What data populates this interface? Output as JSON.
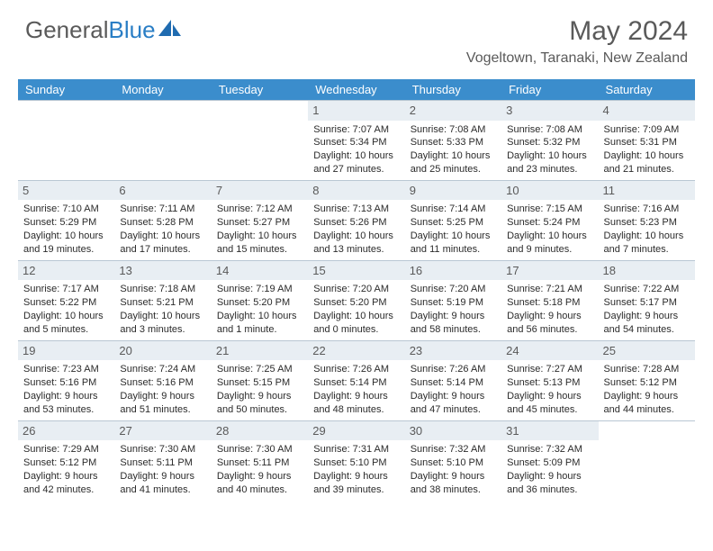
{
  "logo": {
    "text1": "General",
    "text2": "Blue"
  },
  "title": "May 2024",
  "location": "Vogeltown, Taranaki, New Zealand",
  "colors": {
    "header_bg": "#3b8dcc",
    "header_text": "#ffffff",
    "daynum_bg": "#e8eef3",
    "border": "#b9c7d3",
    "text": "#2b2b2b",
    "muted": "#5a5a5a",
    "logo_blue": "#2a7ec5"
  },
  "day_headers": [
    "Sunday",
    "Monday",
    "Tuesday",
    "Wednesday",
    "Thursday",
    "Friday",
    "Saturday"
  ],
  "weeks": [
    [
      {
        "empty": true
      },
      {
        "empty": true
      },
      {
        "empty": true
      },
      {
        "num": "1",
        "sunrise": "7:07 AM",
        "sunset": "5:34 PM",
        "daylight1": "Daylight: 10 hours",
        "daylight2": "and 27 minutes."
      },
      {
        "num": "2",
        "sunrise": "7:08 AM",
        "sunset": "5:33 PM",
        "daylight1": "Daylight: 10 hours",
        "daylight2": "and 25 minutes."
      },
      {
        "num": "3",
        "sunrise": "7:08 AM",
        "sunset": "5:32 PM",
        "daylight1": "Daylight: 10 hours",
        "daylight2": "and 23 minutes."
      },
      {
        "num": "4",
        "sunrise": "7:09 AM",
        "sunset": "5:31 PM",
        "daylight1": "Daylight: 10 hours",
        "daylight2": "and 21 minutes."
      }
    ],
    [
      {
        "num": "5",
        "sunrise": "7:10 AM",
        "sunset": "5:29 PM",
        "daylight1": "Daylight: 10 hours",
        "daylight2": "and 19 minutes."
      },
      {
        "num": "6",
        "sunrise": "7:11 AM",
        "sunset": "5:28 PM",
        "daylight1": "Daylight: 10 hours",
        "daylight2": "and 17 minutes."
      },
      {
        "num": "7",
        "sunrise": "7:12 AM",
        "sunset": "5:27 PM",
        "daylight1": "Daylight: 10 hours",
        "daylight2": "and 15 minutes."
      },
      {
        "num": "8",
        "sunrise": "7:13 AM",
        "sunset": "5:26 PM",
        "daylight1": "Daylight: 10 hours",
        "daylight2": "and 13 minutes."
      },
      {
        "num": "9",
        "sunrise": "7:14 AM",
        "sunset": "5:25 PM",
        "daylight1": "Daylight: 10 hours",
        "daylight2": "and 11 minutes."
      },
      {
        "num": "10",
        "sunrise": "7:15 AM",
        "sunset": "5:24 PM",
        "daylight1": "Daylight: 10 hours",
        "daylight2": "and 9 minutes."
      },
      {
        "num": "11",
        "sunrise": "7:16 AM",
        "sunset": "5:23 PM",
        "daylight1": "Daylight: 10 hours",
        "daylight2": "and 7 minutes."
      }
    ],
    [
      {
        "num": "12",
        "sunrise": "7:17 AM",
        "sunset": "5:22 PM",
        "daylight1": "Daylight: 10 hours",
        "daylight2": "and 5 minutes."
      },
      {
        "num": "13",
        "sunrise": "7:18 AM",
        "sunset": "5:21 PM",
        "daylight1": "Daylight: 10 hours",
        "daylight2": "and 3 minutes."
      },
      {
        "num": "14",
        "sunrise": "7:19 AM",
        "sunset": "5:20 PM",
        "daylight1": "Daylight: 10 hours",
        "daylight2": "and 1 minute."
      },
      {
        "num": "15",
        "sunrise": "7:20 AM",
        "sunset": "5:20 PM",
        "daylight1": "Daylight: 10 hours",
        "daylight2": "and 0 minutes."
      },
      {
        "num": "16",
        "sunrise": "7:20 AM",
        "sunset": "5:19 PM",
        "daylight1": "Daylight: 9 hours",
        "daylight2": "and 58 minutes."
      },
      {
        "num": "17",
        "sunrise": "7:21 AM",
        "sunset": "5:18 PM",
        "daylight1": "Daylight: 9 hours",
        "daylight2": "and 56 minutes."
      },
      {
        "num": "18",
        "sunrise": "7:22 AM",
        "sunset": "5:17 PM",
        "daylight1": "Daylight: 9 hours",
        "daylight2": "and 54 minutes."
      }
    ],
    [
      {
        "num": "19",
        "sunrise": "7:23 AM",
        "sunset": "5:16 PM",
        "daylight1": "Daylight: 9 hours",
        "daylight2": "and 53 minutes."
      },
      {
        "num": "20",
        "sunrise": "7:24 AM",
        "sunset": "5:16 PM",
        "daylight1": "Daylight: 9 hours",
        "daylight2": "and 51 minutes."
      },
      {
        "num": "21",
        "sunrise": "7:25 AM",
        "sunset": "5:15 PM",
        "daylight1": "Daylight: 9 hours",
        "daylight2": "and 50 minutes."
      },
      {
        "num": "22",
        "sunrise": "7:26 AM",
        "sunset": "5:14 PM",
        "daylight1": "Daylight: 9 hours",
        "daylight2": "and 48 minutes."
      },
      {
        "num": "23",
        "sunrise": "7:26 AM",
        "sunset": "5:14 PM",
        "daylight1": "Daylight: 9 hours",
        "daylight2": "and 47 minutes."
      },
      {
        "num": "24",
        "sunrise": "7:27 AM",
        "sunset": "5:13 PM",
        "daylight1": "Daylight: 9 hours",
        "daylight2": "and 45 minutes."
      },
      {
        "num": "25",
        "sunrise": "7:28 AM",
        "sunset": "5:12 PM",
        "daylight1": "Daylight: 9 hours",
        "daylight2": "and 44 minutes."
      }
    ],
    [
      {
        "num": "26",
        "sunrise": "7:29 AM",
        "sunset": "5:12 PM",
        "daylight1": "Daylight: 9 hours",
        "daylight2": "and 42 minutes."
      },
      {
        "num": "27",
        "sunrise": "7:30 AM",
        "sunset": "5:11 PM",
        "daylight1": "Daylight: 9 hours",
        "daylight2": "and 41 minutes."
      },
      {
        "num": "28",
        "sunrise": "7:30 AM",
        "sunset": "5:11 PM",
        "daylight1": "Daylight: 9 hours",
        "daylight2": "and 40 minutes."
      },
      {
        "num": "29",
        "sunrise": "7:31 AM",
        "sunset": "5:10 PM",
        "daylight1": "Daylight: 9 hours",
        "daylight2": "and 39 minutes."
      },
      {
        "num": "30",
        "sunrise": "7:32 AM",
        "sunset": "5:10 PM",
        "daylight1": "Daylight: 9 hours",
        "daylight2": "and 38 minutes."
      },
      {
        "num": "31",
        "sunrise": "7:32 AM",
        "sunset": "5:09 PM",
        "daylight1": "Daylight: 9 hours",
        "daylight2": "and 36 minutes."
      },
      {
        "empty": true
      }
    ]
  ],
  "labels": {
    "sunrise_prefix": "Sunrise: ",
    "sunset_prefix": "Sunset: "
  }
}
